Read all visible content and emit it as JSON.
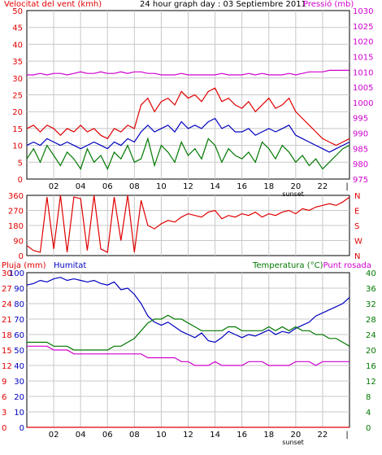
{
  "header": {
    "wind_label": "Velocitat del vent (kmh)",
    "center_title": "24 hour graph day : 03 Septiembre 2011",
    "pressure_label": "Pressió (mb)"
  },
  "colors": {
    "red": "#e00000",
    "blue": "#0000c0",
    "green": "#007800",
    "magenta": "#d000d0",
    "grid": "#c8c8c8",
    "border": "#000000"
  },
  "x_ticks": [
    "02",
    "04",
    "06",
    "08",
    "10",
    "12",
    "14",
    "16",
    "18",
    "20",
    "22",
    "|"
  ],
  "sunset_label": "sunset",
  "chart_data": [
    {
      "type": "line",
      "name": "wind-pressure",
      "x_unit": "hour",
      "x": [
        0,
        0.5,
        1,
        1.5,
        2,
        2.5,
        3,
        3.5,
        4,
        4.5,
        5,
        5.5,
        6,
        6.5,
        7,
        7.5,
        8,
        8.5,
        9,
        9.5,
        10,
        10.5,
        11,
        11.5,
        12,
        12.5,
        13,
        13.5,
        14,
        14.5,
        15,
        15.5,
        16,
        16.5,
        17,
        17.5,
        18,
        18.5,
        19,
        19.5,
        20,
        20.5,
        21,
        21.5,
        22,
        22.5,
        23,
        23.5,
        24
      ],
      "y_left": {
        "ticks": [
          0,
          5,
          10,
          15,
          20,
          25,
          30,
          35,
          40,
          45,
          50
        ],
        "ylim": [
          0,
          50
        ]
      },
      "y_right": {
        "ticks": [
          975,
          980,
          985,
          990,
          995,
          1000,
          1005,
          1010,
          1015,
          1020,
          1025,
          1030
        ],
        "ylim": [
          975,
          1030
        ]
      },
      "series": [
        {
          "color": "red",
          "axis": "left",
          "values": [
            15,
            16,
            14,
            16,
            15,
            13,
            15,
            14,
            16,
            14,
            15,
            13,
            12,
            15,
            14,
            16,
            15,
            22,
            24,
            20,
            23,
            24,
            22,
            26,
            24,
            25,
            23,
            26,
            27,
            23,
            24,
            22,
            21,
            23,
            20,
            22,
            24,
            21,
            22,
            24,
            20,
            18,
            16,
            14,
            12,
            11,
            10,
            11,
            12
          ]
        },
        {
          "color": "blue",
          "axis": "left",
          "values": [
            10,
            11,
            10,
            12,
            11,
            10,
            11,
            10,
            9,
            10,
            11,
            10,
            9,
            11,
            10,
            12,
            11,
            14,
            16,
            14,
            15,
            16,
            14,
            17,
            15,
            16,
            15,
            17,
            18,
            15,
            16,
            14,
            14,
            15,
            13,
            14,
            15,
            14,
            15,
            16,
            13,
            12,
            11,
            10,
            9,
            8,
            9,
            10,
            11
          ]
        },
        {
          "color": "green",
          "axis": "left",
          "values": [
            6,
            9,
            5,
            10,
            7,
            4,
            8,
            6,
            3,
            9,
            5,
            7,
            3,
            8,
            6,
            10,
            5,
            6,
            12,
            4,
            10,
            8,
            5,
            11,
            7,
            9,
            6,
            12,
            10,
            5,
            9,
            7,
            6,
            8,
            5,
            11,
            9,
            6,
            10,
            8,
            5,
            7,
            4,
            6,
            3,
            5,
            7,
            9,
            10
          ]
        },
        {
          "color": "magenta",
          "axis": "right",
          "values": [
            1009,
            1009,
            1009.5,
            1009,
            1009.5,
            1009.5,
            1009,
            1009.5,
            1010,
            1009.5,
            1009.5,
            1010,
            1009.5,
            1009.5,
            1010,
            1009.5,
            1010,
            1010,
            1009.5,
            1009.5,
            1009,
            1009,
            1009,
            1009.5,
            1009,
            1009,
            1009,
            1009,
            1009,
            1009.5,
            1009,
            1009,
            1009,
            1009.5,
            1009,
            1009.5,
            1009,
            1009,
            1009,
            1009.5,
            1009,
            1009.5,
            1010,
            1010,
            1010,
            1010.5,
            1010.5,
            1010.5,
            1010.5
          ]
        }
      ]
    },
    {
      "type": "line",
      "name": "wind-direction",
      "x_unit": "hour",
      "x": [
        0,
        0.5,
        1,
        1.5,
        2,
        2.5,
        3,
        3.5,
        4,
        4.5,
        5,
        5.5,
        6,
        6.5,
        7,
        7.5,
        8,
        8.5,
        9,
        9.5,
        10,
        10.5,
        11,
        11.5,
        12,
        12.5,
        13,
        13.5,
        14,
        14.5,
        15,
        15.5,
        16,
        16.5,
        17,
        17.5,
        18,
        18.5,
        19,
        19.5,
        20,
        20.5,
        21,
        21.5,
        22,
        22.5,
        23,
        23.5,
        24
      ],
      "y_left": {
        "ticks": [
          0,
          90,
          180,
          270,
          360
        ],
        "ylim": [
          0,
          360
        ]
      },
      "y_right_labels": [
        "N",
        "W",
        "S",
        "E",
        "N"
      ],
      "series": [
        {
          "color": "red",
          "axis": "left",
          "values": [
            60,
            30,
            20,
            350,
            40,
            360,
            20,
            350,
            340,
            30,
            360,
            40,
            20,
            350,
            90,
            360,
            20,
            330,
            180,
            160,
            190,
            210,
            200,
            230,
            250,
            240,
            230,
            260,
            270,
            220,
            240,
            230,
            250,
            240,
            260,
            230,
            250,
            240,
            260,
            270,
            250,
            280,
            270,
            290,
            300,
            310,
            300,
            320,
            350
          ]
        }
      ]
    },
    {
      "type": "line",
      "name": "rain-humidity-temperature",
      "x_unit": "hour",
      "x": [
        0,
        0.5,
        1,
        1.5,
        2,
        2.5,
        3,
        3.5,
        4,
        4.5,
        5,
        5.5,
        6,
        6.5,
        7,
        7.5,
        8,
        8.5,
        9,
        9.5,
        10,
        10.5,
        11,
        11.5,
        12,
        12.5,
        13,
        13.5,
        14,
        14.5,
        15,
        15.5,
        16,
        16.5,
        17,
        17.5,
        18,
        18.5,
        19,
        19.5,
        20,
        20.5,
        21,
        21.5,
        22,
        22.5,
        23,
        23.5,
        24
      ],
      "labels": {
        "rain": "Pluja (mm)",
        "humidity": "Humitat",
        "temperature": "Temperatura (°C)",
        "dewpoint": "Punt rosada"
      },
      "y_rain": {
        "ticks": [
          0,
          3,
          6,
          9,
          12,
          15,
          18,
          21,
          24,
          27,
          30
        ],
        "ylim": [
          0,
          30
        ]
      },
      "y_humidity": {
        "ticks": [
          0,
          10,
          20,
          30,
          40,
          50,
          60,
          70,
          80,
          90,
          100
        ],
        "ylim": [
          0,
          100
        ]
      },
      "y_temperature": {
        "ticks": [
          0,
          4,
          8,
          12,
          16,
          20,
          24,
          28,
          32,
          36,
          40
        ],
        "ylim": [
          0,
          40
        ]
      },
      "series": [
        {
          "color": "red",
          "axis": "rain",
          "values": [
            0,
            0,
            0,
            0,
            0,
            0,
            0,
            0,
            0,
            0,
            0,
            0,
            0,
            0,
            0,
            0,
            0,
            0,
            0,
            0,
            0,
            0,
            0,
            0,
            0,
            0,
            0,
            0,
            0,
            0,
            0,
            0,
            0,
            0,
            0,
            0,
            0,
            0,
            0,
            0,
            0,
            0,
            0,
            0,
            0,
            0,
            0,
            0,
            0
          ]
        },
        {
          "color": "blue",
          "axis": "humidity",
          "values": [
            92,
            93,
            95,
            94,
            96,
            97,
            95,
            96,
            95,
            94,
            95,
            93,
            92,
            94,
            89,
            90,
            86,
            80,
            72,
            68,
            66,
            68,
            65,
            62,
            60,
            58,
            61,
            56,
            55,
            58,
            62,
            60,
            58,
            60,
            59,
            61,
            63,
            60,
            62,
            61,
            64,
            66,
            68,
            72,
            74,
            76,
            78,
            80,
            84
          ]
        },
        {
          "color": "green",
          "axis": "temperature",
          "values": [
            22,
            22,
            22,
            22,
            21,
            21,
            21,
            20,
            20,
            20,
            20,
            20,
            20,
            21,
            21,
            22,
            23,
            25,
            27,
            28,
            28,
            29,
            28,
            28,
            27,
            26,
            25,
            25,
            25,
            25,
            26,
            26,
            25,
            25,
            25,
            25,
            26,
            25,
            26,
            25,
            26,
            25,
            25,
            24,
            24,
            23,
            23,
            22,
            21
          ]
        },
        {
          "color": "magenta",
          "axis": "temperature",
          "values": [
            21,
            21,
            21,
            21,
            20,
            20,
            20,
            19,
            19,
            19,
            19,
            19,
            19,
            19,
            19,
            19,
            19,
            19,
            18,
            18,
            18,
            18,
            18,
            17,
            17,
            16,
            16,
            16,
            17,
            16,
            16,
            16,
            16,
            17,
            17,
            17,
            16,
            16,
            16,
            16,
            17,
            17,
            17,
            16,
            17,
            17,
            17,
            17,
            17
          ]
        }
      ]
    }
  ]
}
